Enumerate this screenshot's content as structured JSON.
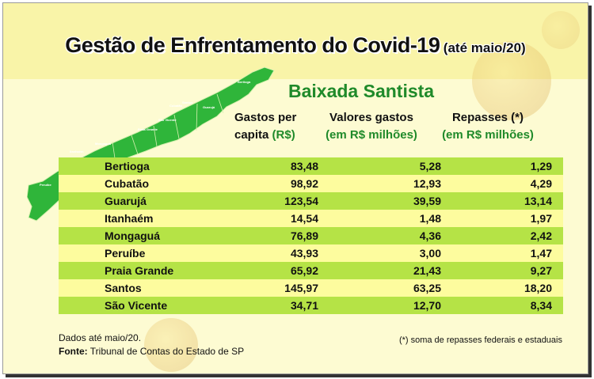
{
  "header": {
    "title": "Gestão de Enfrentamento do Covid-19",
    "subtitle": "(até maio/20)",
    "region": "Baixada Santista"
  },
  "columns": {
    "col1_line1": "Gastos per",
    "col1_line2a": "capita ",
    "col1_line2b": "(R$)",
    "col2_line1": "Valores gastos",
    "col2_line2": "(em R$ milhões)",
    "col3_line1": "Repasses (*)",
    "col3_line2": "(em R$ milhões)"
  },
  "rows": [
    {
      "city": "Bertioga",
      "per_capita": "83,48",
      "gastos": "5,28",
      "repasses": "1,29"
    },
    {
      "city": "Cubatão",
      "per_capita": "98,92",
      "gastos": "12,93",
      "repasses": "4,29"
    },
    {
      "city": "Guarujá",
      "per_capita": "123,54",
      "gastos": "39,59",
      "repasses": "13,14"
    },
    {
      "city": "Itanhaém",
      "per_capita": "14,54",
      "gastos": "1,48",
      "repasses": "1,97"
    },
    {
      "city": "Mongaguá",
      "per_capita": "76,89",
      "gastos": "4,36",
      "repasses": "2,42"
    },
    {
      "city": "Peruíbe",
      "per_capita": "43,93",
      "gastos": "3,00",
      "repasses": "1,47"
    },
    {
      "city": "Praia Grande",
      "per_capita": "65,92",
      "gastos": "21,43",
      "repasses": "9,27"
    },
    {
      "city": "Santos",
      "per_capita": "145,97",
      "gastos": "63,25",
      "repasses": "18,20"
    },
    {
      "city": "São Vicente",
      "per_capita": "34,71",
      "gastos": "12,70",
      "repasses": "8,34"
    }
  ],
  "map_labels": {
    "bertioga": "Bertioga",
    "cubatao": "Cubatão",
    "santos": "Santos",
    "guaruja": "Guarujá",
    "sao_vicente": "São Vicente",
    "praia_grande": "Praia Grande",
    "mongagua": "Mongaguá",
    "itanhaem": "Itanhaém",
    "peruibe": "Peruíbe"
  },
  "footer": {
    "dados": "Dados até maio/20.",
    "fonte_label": "Fonte:",
    "fonte_text": " Tribunal de Contas do Estado de SP",
    "note": "(*) soma de repasses federais e estaduais"
  },
  "colors": {
    "green_row": "#b5e346",
    "yellow_row": "#fdfc9e",
    "map_green": "#2fb53a",
    "region_green": "#1f8a2a"
  }
}
